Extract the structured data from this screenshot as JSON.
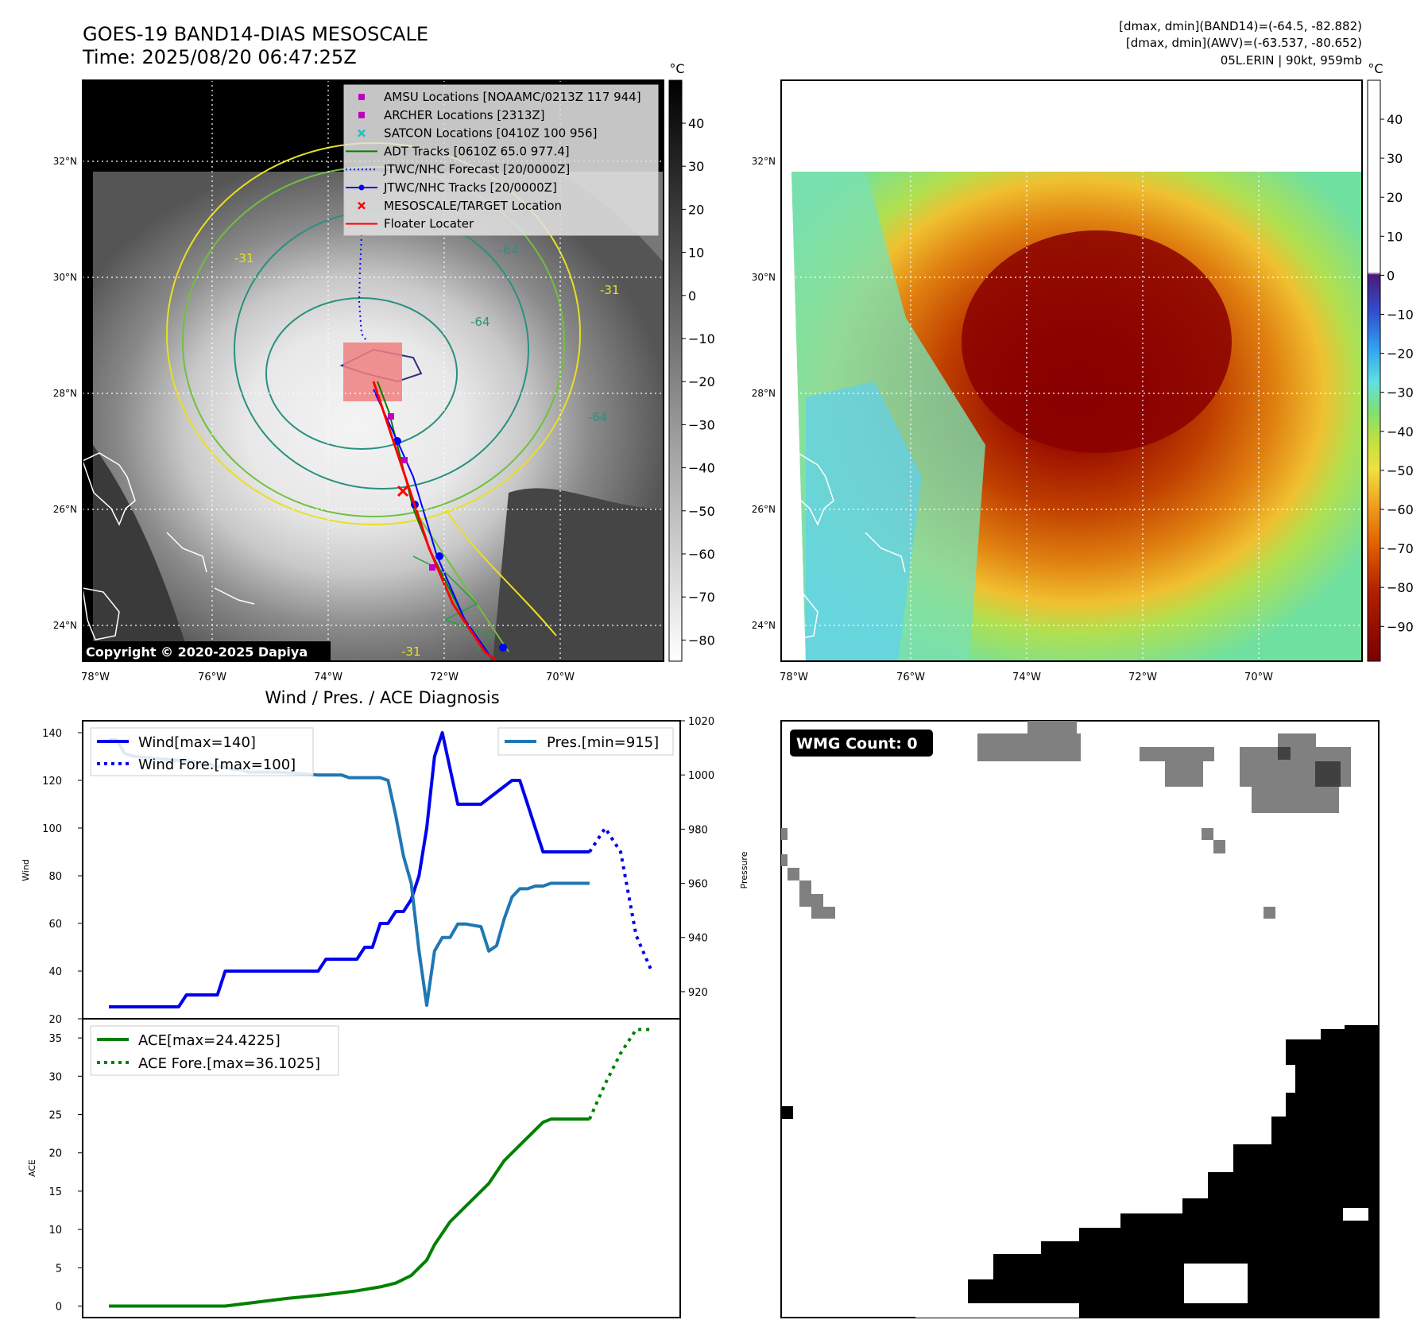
{
  "header": {
    "title": "GOES-19 BAND14-DIAS MESOSCALE",
    "time": "Time: 2025/08/20 06:47:25Z",
    "stats1": "[dmax, dmin](BAND14)=(-64.5, -82.882)",
    "stats2": "[dmax, dmin](AWV)=(-63.537, -80.652)",
    "storm": "05L.ERIN | 90kt, 959mb"
  },
  "maps": {
    "lon_ticks": [
      "78°W",
      "76°W",
      "74°W",
      "72°W",
      "70°W"
    ],
    "lat_ticks": [
      "32°N",
      "30°N",
      "28°N",
      "26°N",
      "24°N"
    ],
    "copyright": "Copyright © 2020-2025 Dapiya",
    "contour_labels": [
      "-31",
      "-31",
      "-64",
      "-64",
      "-64",
      "-31"
    ],
    "cbar_unit": "°C",
    "left_cbar_ticks": [
      "40",
      "30",
      "20",
      "10",
      "0",
      "−10",
      "−20",
      "−30",
      "−40",
      "−50",
      "−60",
      "−70",
      "−80"
    ],
    "right_cbar_ticks": [
      "40",
      "30",
      "20",
      "10",
      "0",
      "−10",
      "−20",
      "−30",
      "−40",
      "−50",
      "−60",
      "−70",
      "−80",
      "−90"
    ]
  },
  "legend": [
    {
      "label": "AMSU Locations [NOAAMC/0213Z 117 944]",
      "marker": "square",
      "color": "#c000c0"
    },
    {
      "label": "ARCHER Locations [2313Z]",
      "marker": "square",
      "color": "#c000c0"
    },
    {
      "label": "SATCON Locations [0410Z 100 956]",
      "marker": "x",
      "color": "#20c0c0"
    },
    {
      "label": "ADT Tracks [0610Z 65.0 977.4]",
      "marker": "line",
      "color": "#008000"
    },
    {
      "label": "JTWC/NHC Forecast [20/0000Z]",
      "marker": "dotted",
      "color": "#0000ff"
    },
    {
      "label": "JTWC/NHC Tracks [20/0000Z]",
      "marker": "line-dot",
      "color": "#0000ff"
    },
    {
      "label": "MESOSCALE/TARGET Location",
      "marker": "x",
      "color": "#ff0000"
    },
    {
      "label": "Floater Locater",
      "marker": "line",
      "color": "#ff0000"
    }
  ],
  "diag": {
    "title": "Wind / Pres. / ACE Diagnosis",
    "wind_axis_label": "Wind",
    "pres_axis_label": "Pressure",
    "ace_axis_label": "ACE",
    "wind_legend": [
      "Wind[max=140]",
      "Wind Fore.[max=100]"
    ],
    "pres_legend": "Pres.[min=915]",
    "ace_legend": [
      "ACE[max=24.4225]",
      "ACE Fore.[max=36.1025]"
    ],
    "wmg_label": "WMG Count: 0"
  },
  "colors": {
    "wind": "#0000ee",
    "pressure": "#1f77b4",
    "ace": "#008000"
  },
  "chart_data": [
    {
      "type": "line",
      "title": "Wind / Pres. / ACE Diagnosis",
      "xlabel": "",
      "ylabel": "Wind",
      "ylabel_right": "Pressure",
      "ylim": [
        20,
        145
      ],
      "ylim_right": [
        910,
        1020
      ],
      "y_ticks": [
        20,
        40,
        60,
        80,
        100,
        120,
        140
      ],
      "y_right_ticks": [
        920,
        940,
        960,
        980,
        1000,
        1020
      ],
      "x": [
        0,
        1,
        2,
        3,
        4,
        5,
        6,
        7,
        8,
        9,
        10,
        11,
        12,
        13,
        14,
        15,
        16,
        17,
        18,
        19,
        20,
        21,
        22,
        23,
        24,
        25,
        26,
        27,
        28,
        29,
        30,
        31,
        32,
        33,
        34,
        35,
        36,
        37,
        38,
        39,
        40,
        41,
        42,
        43,
        44,
        45,
        46,
        47,
        48,
        49,
        50,
        51,
        52,
        53,
        54,
        55,
        56,
        57,
        58,
        59,
        60,
        61,
        62,
        63,
        64,
        65,
        66,
        67,
        68,
        69,
        70
      ],
      "series": [
        {
          "name": "Wind[max=140]",
          "axis": "left",
          "style": "solid",
          "x": [
            0,
            9,
            10,
            14,
            15,
            27,
            28,
            32,
            33,
            34,
            35,
            36,
            37,
            38,
            39,
            40,
            41,
            42,
            43,
            44,
            45,
            46,
            47,
            48,
            52,
            53,
            54,
            55,
            56,
            57,
            59,
            60,
            61,
            62
          ],
          "values": [
            25,
            25,
            30,
            30,
            40,
            40,
            45,
            45,
            50,
            50,
            60,
            60,
            65,
            65,
            70,
            80,
            100,
            130,
            140,
            125,
            110,
            110,
            110,
            110,
            120,
            120,
            110,
            100,
            90,
            90,
            90,
            90,
            90,
            90
          ]
        },
        {
          "name": "Wind Fore.[max=100]",
          "axis": "left",
          "style": "dotted",
          "x": [
            62,
            64,
            66,
            68,
            70
          ],
          "values": [
            90,
            100,
            90,
            55,
            40
          ]
        },
        {
          "name": "Pres.[min=915]",
          "axis": "right",
          "style": "solid",
          "x": [
            0,
            1,
            2,
            3,
            6,
            11,
            12,
            13,
            14,
            15,
            16,
            17,
            18,
            22,
            27,
            30,
            31,
            35,
            36,
            37,
            38,
            39,
            40,
            41,
            42,
            43,
            44,
            45,
            46,
            48,
            49,
            50,
            51,
            52,
            53,
            54,
            55,
            56,
            57,
            58,
            59,
            60,
            61,
            62
          ],
          "values": [
            1013,
            1013,
            1008,
            1007,
            1006,
            1005,
            1004,
            1004,
            1003,
            1003,
            1002,
            1002,
            1001,
            1001,
            1000,
            1000,
            999,
            999,
            998,
            985,
            970,
            960,
            935,
            915,
            935,
            940,
            940,
            945,
            945,
            944,
            935,
            937,
            947,
            955,
            958,
            958,
            959,
            959,
            960,
            960,
            960,
            960,
            960,
            960
          ]
        }
      ]
    },
    {
      "type": "line",
      "title": "",
      "xlabel": "",
      "ylabel": "ACE",
      "ylim": [
        -1.5,
        37.5
      ],
      "y_ticks": [
        0,
        5,
        10,
        15,
        20,
        25,
        30,
        35
      ],
      "series": [
        {
          "name": "ACE[max=24.4225]",
          "style": "solid",
          "x": [
            0,
            15,
            23,
            28,
            32,
            35,
            37,
            38,
            39,
            40,
            41,
            42,
            43,
            44,
            45,
            46,
            47,
            48,
            49,
            50,
            51,
            52,
            53,
            54,
            55,
            56,
            57,
            58,
            59,
            60,
            61,
            62
          ],
          "values": [
            0,
            0,
            1,
            1.5,
            2,
            2.5,
            3,
            3.5,
            4,
            5,
            6,
            8,
            9.5,
            11,
            12,
            13,
            14,
            15,
            16,
            17.5,
            19,
            20,
            21,
            22,
            23,
            24,
            24.4,
            24.4,
            24.4,
            24.4,
            24.4,
            24.4
          ]
        },
        {
          "name": "ACE Fore.[max=36.1025]",
          "style": "dotted",
          "x": [
            62,
            64,
            66,
            68,
            70
          ],
          "values": [
            24.4,
            29,
            33,
            36.1,
            36.1
          ]
        }
      ]
    }
  ]
}
